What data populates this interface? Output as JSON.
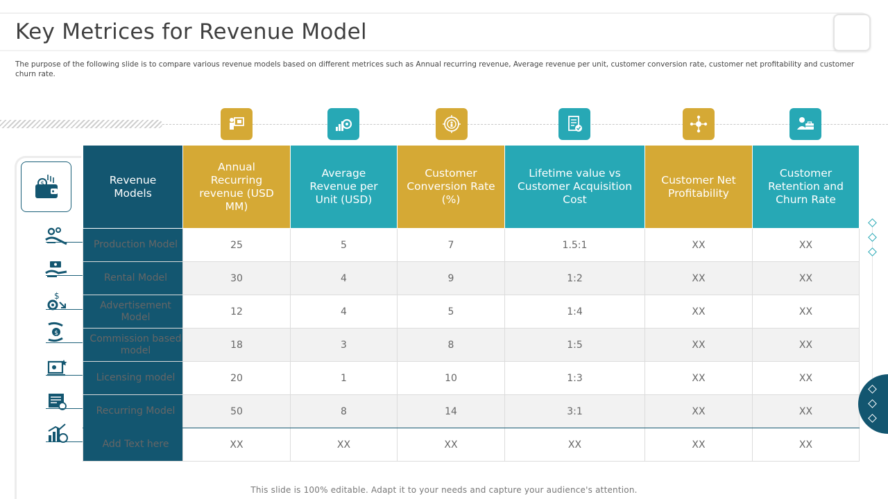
{
  "page": {
    "title": "Key Metrices for Revenue Model",
    "subtitle": "The purpose of the following slide is to compare various revenue models based on different metrices such as Annual recurring revenue, Average revenue per unit, customer conversion rate, customer net profitability and customer churn rate.",
    "footer": "This slide is 100% editable. Adapt it to your needs and capture your audience's attention."
  },
  "colors": {
    "navy": "#135670",
    "gold": "#d5a935",
    "teal": "#27a8b5"
  },
  "table": {
    "first_header": "Revenue Models",
    "columns": [
      {
        "label": "Annual Recurring revenue  (USD MM)",
        "color": "gold",
        "icon": "presentation-board-icon"
      },
      {
        "label": "Average Revenue per Unit (USD)",
        "color": "teal",
        "icon": "growth-gear-icon"
      },
      {
        "label": "Customer Conversion Rate (%)",
        "color": "gold",
        "icon": "target-people-icon"
      },
      {
        "label": "Lifetime value vs Customer Acquisition Cost",
        "color": "teal",
        "icon": "checklist-document-icon"
      },
      {
        "label": "Customer Net Profitability",
        "color": "gold",
        "icon": "network-people-icon"
      },
      {
        "label": "Customer Retention and Churn Rate",
        "color": "teal",
        "icon": "user-briefcase-icon"
      }
    ],
    "rows": [
      {
        "name": "Production Model",
        "icon": "hand-gears-icon",
        "values": [
          "25",
          "5",
          "7",
          "1.5:1",
          "XX",
          "XX"
        ]
      },
      {
        "name": "Rental Model",
        "icon": "hand-money-icon",
        "values": [
          "30",
          "4",
          "9",
          "1:2",
          "XX",
          "XX"
        ]
      },
      {
        "name": "Advertisement Model",
        "icon": "dollar-gear-icon",
        "values": [
          "12",
          "4",
          "5",
          "1:4",
          "XX",
          "XX"
        ]
      },
      {
        "name": "Commission based model",
        "icon": "hand-coin-icon",
        "values": [
          "18",
          "3",
          "8",
          "1:5",
          "XX",
          "XX"
        ]
      },
      {
        "name": "Licensing model",
        "icon": "certificate-screen-icon",
        "values": [
          "20",
          "1",
          "10",
          "1:3",
          "XX",
          "XX"
        ]
      },
      {
        "name": "Recurring Model",
        "icon": "recurring-document-icon",
        "values": [
          "50",
          "8",
          "14",
          "3:1",
          "XX",
          "XX"
        ]
      },
      {
        "name": "Add Text here",
        "icon": "bar-growth-icon",
        "values": [
          "XX",
          "XX",
          "XX",
          "XX",
          "XX",
          "XX"
        ]
      }
    ]
  },
  "left_panel_icon": "wallet-money-icon"
}
